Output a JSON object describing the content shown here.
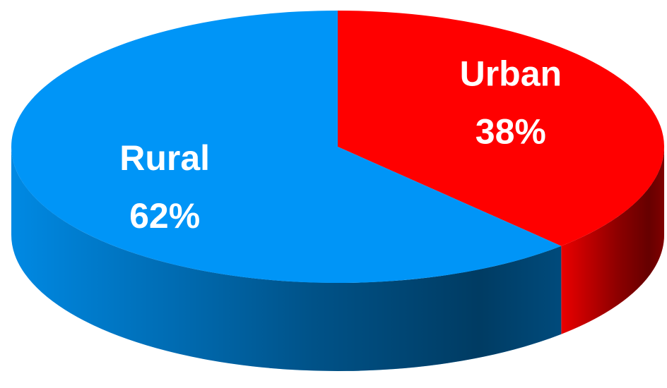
{
  "chart_data": {
    "type": "pie",
    "categories": [
      "Urban",
      "Rural"
    ],
    "values": [
      38,
      62
    ],
    "value_labels": [
      "38%",
      "62%"
    ],
    "colors": [
      "#ff0000",
      "#0095f7"
    ]
  }
}
